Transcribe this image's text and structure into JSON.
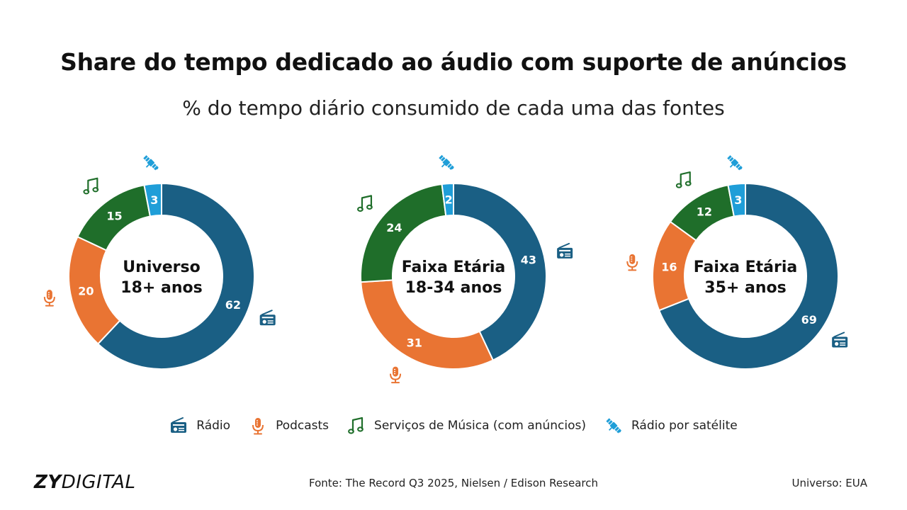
{
  "title": "Share do tempo dedicado ao áudio com suporte de anúncios",
  "subtitle": "% do tempo diário consumido de cada uma das fontes",
  "colors": {
    "radio": "#1a5f84",
    "podcasts": "#e97433",
    "music": "#1f6e2a",
    "satellite": "#1f9ed8"
  },
  "legend": [
    {
      "key": "radio",
      "label": "Rádio",
      "icon": "radio-icon"
    },
    {
      "key": "podcasts",
      "label": "Podcasts",
      "icon": "microphone-icon"
    },
    {
      "key": "music",
      "label": "Serviços de Música (com anúncios)",
      "icon": "music-note-icon"
    },
    {
      "key": "satellite",
      "label": "Rádio por satélite",
      "icon": "satellite-icon"
    }
  ],
  "chart_data": [
    {
      "type": "pie",
      "center_label": [
        "Universo",
        "18+ anos"
      ],
      "categories": [
        "Rádio",
        "Podcasts",
        "Serviços de Música (com anúncios)",
        "Rádio por satélite"
      ],
      "values": [
        62,
        20,
        15,
        3
      ]
    },
    {
      "type": "pie",
      "center_label": [
        "Faixa Etária",
        "18-34 anos"
      ],
      "categories": [
        "Rádio",
        "Podcasts",
        "Serviços de Música (com anúncios)",
        "Rádio por satélite"
      ],
      "values": [
        43,
        31,
        24,
        2
      ]
    },
    {
      "type": "pie",
      "center_label": [
        "Faixa Etária",
        "35+ anos"
      ],
      "categories": [
        "Rádio",
        "Podcasts",
        "Serviços de Música (com anúncios)",
        "Rádio por satélite"
      ],
      "values": [
        69,
        16,
        12,
        3
      ]
    }
  ],
  "footer": {
    "logo_bold": "ZY",
    "logo_light": "DIGITAL",
    "source": "Fonte: The Record Q3 2025, Nielsen / Edison Research",
    "universe": "Universo: EUA"
  }
}
